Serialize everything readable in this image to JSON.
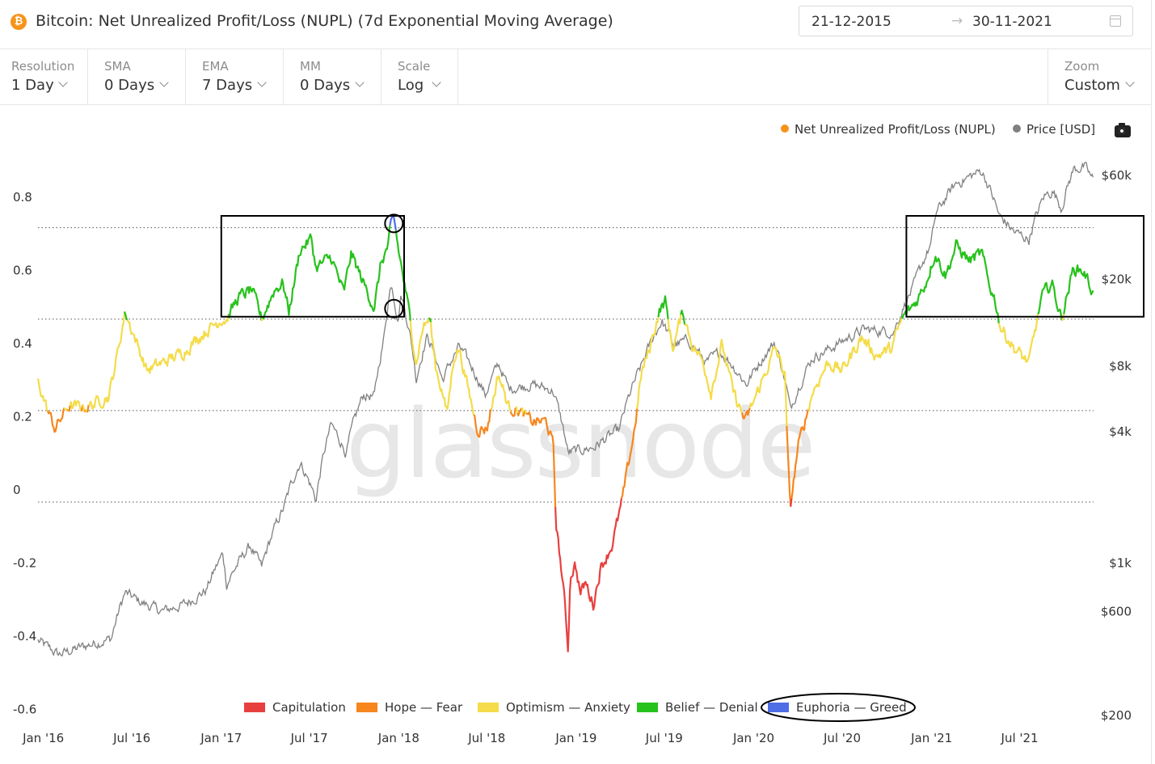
{
  "header": {
    "asset_icon": "bitcoin-icon",
    "asset_glyph": "₿",
    "title": "Bitcoin: Net Unrealized Profit/Loss (NUPL) (7d Exponential Moving Average)",
    "date_from": "21-12-2015",
    "date_arrow": "→",
    "date_to": "30-11-2021",
    "calendar_icon": "calendar-icon"
  },
  "controls": [
    {
      "label": "Resolution",
      "value": "1 Day"
    },
    {
      "label": "SMA",
      "value": "0 Days"
    },
    {
      "label": "EMA",
      "value": "7 Days"
    },
    {
      "label": "MM",
      "value": "0 Days"
    },
    {
      "label": "Scale",
      "value": "Log"
    }
  ],
  "zoom": {
    "label": "Zoom",
    "value": "Custom"
  },
  "colors": {
    "capitulation": "#e8403f",
    "hope_fear": "#f7861c",
    "optimism_anxiety": "#f4dc4a",
    "belief_denial": "#27c21c",
    "euphoria_greed": "#4e6ee6",
    "price": "#808080",
    "nupl_legend_dot": "#f7931a",
    "bitcoin_orange": "#f7931a"
  },
  "chart_data": {
    "type": "line",
    "title": "Bitcoin: Net Unrealized Profit/Loss (NUPL) (7d Exponential Moving Average)",
    "series_legend": [
      {
        "name": "Net Unrealized Profit/Loss (NUPL)",
        "color": "#f7931a"
      },
      {
        "name": "Price [USD]",
        "color": "#808080"
      }
    ],
    "x_tick_labels": [
      "Jan '16",
      "Jul '16",
      "Jan '17",
      "Jul '17",
      "Jan '18",
      "Jul '18",
      "Jan '19",
      "Jul '19",
      "Jan '20",
      "Jul '20",
      "Jan '21",
      "Jul '21"
    ],
    "x_range": [
      "2015-12-21",
      "2021-11-30"
    ],
    "y_left": {
      "ticks": [
        0.8,
        0.6,
        0.4,
        0.2,
        0,
        -0.2,
        -0.4,
        -0.6
      ],
      "tick_labels": [
        "0.8",
        "0.6",
        "0.4",
        "0.2",
        "0",
        "-0.2",
        "-0.4",
        "-0.6"
      ],
      "range": [
        -0.6,
        0.85
      ]
    },
    "y_right": {
      "scale": "log",
      "ticks": [
        60000,
        20000,
        8000,
        4000,
        1000,
        600,
        200
      ],
      "tick_labels": [
        "$60k",
        "$20k",
        "$8k",
        "$4k",
        "$1k",
        "$600",
        "$200"
      ]
    },
    "zone_lines": [
      0.75,
      0.5,
      0.25,
      0
    ],
    "nupl_anchors": [
      [
        "2015-12-21",
        0.33
      ],
      [
        "2016-01-10",
        0.25
      ],
      [
        "2016-01-25",
        0.2
      ],
      [
        "2016-02-20",
        0.26
      ],
      [
        "2016-04-01",
        0.26
      ],
      [
        "2016-05-15",
        0.29
      ],
      [
        "2016-06-05",
        0.43
      ],
      [
        "2016-06-17",
        0.52
      ],
      [
        "2016-07-10",
        0.44
      ],
      [
        "2016-08-01",
        0.36
      ],
      [
        "2016-09-01",
        0.38
      ],
      [
        "2016-10-15",
        0.41
      ],
      [
        "2016-11-15",
        0.45
      ],
      [
        "2016-12-31",
        0.5
      ],
      [
        "2017-01-12",
        0.5
      ],
      [
        "2017-02-05",
        0.56
      ],
      [
        "2017-03-05",
        0.58
      ],
      [
        "2017-03-25",
        0.5
      ],
      [
        "2017-04-20",
        0.58
      ],
      [
        "2017-05-08",
        0.6
      ],
      [
        "2017-05-20",
        0.52
      ],
      [
        "2017-06-12",
        0.69
      ],
      [
        "2017-07-05",
        0.72
      ],
      [
        "2017-07-15",
        0.64
      ],
      [
        "2017-08-15",
        0.67
      ],
      [
        "2017-09-10",
        0.57
      ],
      [
        "2017-09-25",
        0.68
      ],
      [
        "2017-10-20",
        0.6
      ],
      [
        "2017-11-12",
        0.53
      ],
      [
        "2017-11-25",
        0.65
      ],
      [
        "2017-12-10",
        0.7
      ],
      [
        "2017-12-17",
        0.76
      ],
      [
        "2017-12-23",
        0.77
      ],
      [
        "2017-12-30",
        0.7
      ],
      [
        "2018-01-12",
        0.6
      ],
      [
        "2018-01-22",
        0.52
      ],
      [
        "2018-02-06",
        0.38
      ],
      [
        "2018-02-20",
        0.48
      ],
      [
        "2018-03-06",
        0.5
      ],
      [
        "2018-03-18",
        0.37
      ],
      [
        "2018-04-01",
        0.3
      ],
      [
        "2018-04-10",
        0.24
      ],
      [
        "2018-04-25",
        0.4
      ],
      [
        "2018-05-05",
        0.42
      ],
      [
        "2018-05-25",
        0.3
      ],
      [
        "2018-06-12",
        0.2
      ],
      [
        "2018-07-01",
        0.2
      ],
      [
        "2018-07-25",
        0.35
      ],
      [
        "2018-08-15",
        0.26
      ],
      [
        "2018-09-05",
        0.25
      ],
      [
        "2018-10-01",
        0.22
      ],
      [
        "2018-11-01",
        0.22
      ],
      [
        "2018-11-15",
        0.15
      ],
      [
        "2018-11-20",
        -0.05
      ],
      [
        "2018-12-01",
        -0.18
      ],
      [
        "2018-12-10",
        -0.3
      ],
      [
        "2018-12-15",
        -0.4
      ],
      [
        "2018-12-20",
        -0.2
      ],
      [
        "2018-12-30",
        -0.17
      ],
      [
        "2019-01-10",
        -0.25
      ],
      [
        "2019-01-20",
        -0.22
      ],
      [
        "2019-02-05",
        -0.28
      ],
      [
        "2019-02-20",
        -0.18
      ],
      [
        "2019-03-15",
        -0.12
      ],
      [
        "2019-04-05",
        0.0
      ],
      [
        "2019-05-01",
        0.2
      ],
      [
        "2019-05-15",
        0.35
      ],
      [
        "2019-06-01",
        0.42
      ],
      [
        "2019-06-20",
        0.52
      ],
      [
        "2019-07-03",
        0.55
      ],
      [
        "2019-07-18",
        0.42
      ],
      [
        "2019-08-08",
        0.52
      ],
      [
        "2019-08-28",
        0.43
      ],
      [
        "2019-09-20",
        0.38
      ],
      [
        "2019-10-05",
        0.3
      ],
      [
        "2019-10-28",
        0.43
      ],
      [
        "2019-11-20",
        0.3
      ],
      [
        "2019-12-15",
        0.22
      ],
      [
        "2020-01-15",
        0.32
      ],
      [
        "2020-02-14",
        0.42
      ],
      [
        "2020-03-05",
        0.35
      ],
      [
        "2020-03-12",
        0.1
      ],
      [
        "2020-03-16",
        -0.02
      ],
      [
        "2020-04-01",
        0.15
      ],
      [
        "2020-05-01",
        0.3
      ],
      [
        "2020-06-01",
        0.38
      ],
      [
        "2020-07-01",
        0.36
      ],
      [
        "2020-08-10",
        0.45
      ],
      [
        "2020-09-10",
        0.4
      ],
      [
        "2020-10-10",
        0.42
      ],
      [
        "2020-11-01",
        0.5
      ],
      [
        "2020-12-01",
        0.55
      ],
      [
        "2020-12-20",
        0.6
      ],
      [
        "2021-01-08",
        0.68
      ],
      [
        "2021-01-30",
        0.62
      ],
      [
        "2021-02-20",
        0.7
      ],
      [
        "2021-03-20",
        0.66
      ],
      [
        "2021-04-14",
        0.68
      ],
      [
        "2021-04-28",
        0.6
      ],
      [
        "2021-05-12",
        0.55
      ],
      [
        "2021-05-22",
        0.48
      ],
      [
        "2021-06-20",
        0.42
      ],
      [
        "2021-07-20",
        0.38
      ],
      [
        "2021-08-15",
        0.56
      ],
      [
        "2021-09-05",
        0.6
      ],
      [
        "2021-09-25",
        0.5
      ],
      [
        "2021-10-20",
        0.64
      ],
      [
        "2021-11-10",
        0.63
      ],
      [
        "2021-11-30",
        0.57
      ]
    ],
    "price_anchors": [
      [
        "2015-12-21",
        440
      ],
      [
        "2016-02-01",
        380
      ],
      [
        "2016-04-01",
        420
      ],
      [
        "2016-05-20",
        450
      ],
      [
        "2016-06-17",
        730
      ],
      [
        "2016-07-20",
        660
      ],
      [
        "2016-09-01",
        600
      ],
      [
        "2016-10-20",
        650
      ],
      [
        "2016-12-01",
        750
      ],
      [
        "2017-01-04",
        1100
      ],
      [
        "2017-01-12",
        800
      ],
      [
        "2017-03-01",
        1200
      ],
      [
        "2017-03-25",
        950
      ],
      [
        "2017-05-10",
        1800
      ],
      [
        "2017-06-12",
        2900
      ],
      [
        "2017-07-15",
        1950
      ],
      [
        "2017-08-15",
        4300
      ],
      [
        "2017-09-15",
        3200
      ],
      [
        "2017-10-20",
        5900
      ],
      [
        "2017-11-12",
        5800
      ],
      [
        "2017-12-01",
        10500
      ],
      [
        "2017-12-17",
        19500
      ],
      [
        "2017-12-30",
        13000
      ],
      [
        "2018-01-06",
        17000
      ],
      [
        "2018-02-06",
        7000
      ],
      [
        "2018-03-01",
        11000
      ],
      [
        "2018-04-01",
        6900
      ],
      [
        "2018-05-05",
        9800
      ],
      [
        "2018-06-28",
        5900
      ],
      [
        "2018-07-25",
        8200
      ],
      [
        "2018-08-15",
        6300
      ],
      [
        "2018-10-01",
        6600
      ],
      [
        "2018-11-14",
        6200
      ],
      [
        "2018-12-15",
        3200
      ],
      [
        "2019-02-07",
        3400
      ],
      [
        "2019-03-31",
        4100
      ],
      [
        "2019-05-15",
        8000
      ],
      [
        "2019-06-26",
        12900
      ],
      [
        "2019-07-20",
        10000
      ],
      [
        "2019-08-20",
        10500
      ],
      [
        "2019-09-25",
        8300
      ],
      [
        "2019-10-26",
        9300
      ],
      [
        "2019-12-17",
        6600
      ],
      [
        "2020-02-13",
        10300
      ],
      [
        "2020-03-12",
        5800
      ],
      [
        "2020-03-16",
        5000
      ],
      [
        "2020-04-30",
        8700
      ],
      [
        "2020-06-01",
        9500
      ],
      [
        "2020-08-15",
        11800
      ],
      [
        "2020-10-15",
        11500
      ],
      [
        "2020-11-25",
        18500
      ],
      [
        "2020-12-31",
        29000
      ],
      [
        "2021-01-10",
        40000
      ],
      [
        "2021-02-20",
        55000
      ],
      [
        "2021-04-14",
        63000
      ],
      [
        "2021-05-20",
        39000
      ],
      [
        "2021-06-20",
        33000
      ],
      [
        "2021-07-20",
        30500
      ],
      [
        "2021-08-20",
        48000
      ],
      [
        "2021-09-07",
        51000
      ],
      [
        "2021-09-25",
        42500
      ],
      [
        "2021-10-20",
        64000
      ],
      [
        "2021-11-10",
        66000
      ],
      [
        "2021-11-30",
        57000
      ]
    ],
    "zones_legend": [
      {
        "name": "Capitulation",
        "color": "#e8403f"
      },
      {
        "name": "Hope — Fear",
        "color": "#f7861c"
      },
      {
        "name": "Optimism — Anxiety",
        "color": "#f4dc4a"
      },
      {
        "name": "Belief — Denial",
        "color": "#27c21c"
      },
      {
        "name": "Euphoria — Greed",
        "color": "#4e6ee6"
      }
    ],
    "watermark": "glassnode",
    "annotations": [
      {
        "type": "rectangle",
        "from": "2017-01-01",
        "to": "2018-01-12",
        "y_range": [
          0.5,
          0.8
        ]
      },
      {
        "type": "circle",
        "at": "2017-12-22",
        "target": "NUPL peak"
      },
      {
        "type": "circle",
        "at": "2017-12-22",
        "target": "Price peak"
      },
      {
        "type": "rectangle",
        "from": "2020-11-10",
        "to": "2021-12-31",
        "y_range": [
          0.5,
          0.8
        ]
      },
      {
        "type": "ellipse",
        "target": "Euphoria — Greed legend entry"
      }
    ]
  }
}
